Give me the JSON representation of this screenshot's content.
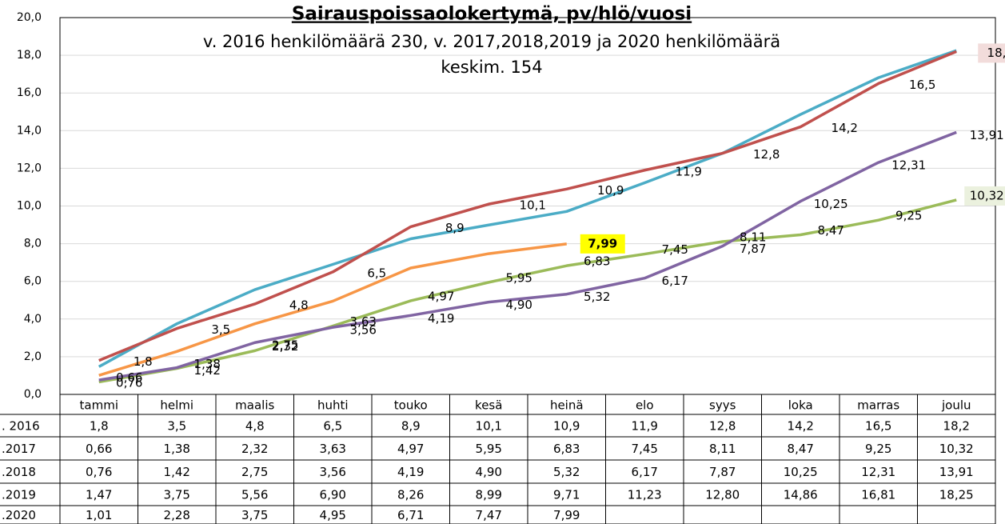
{
  "chart_data": {
    "type": "line",
    "title": "Sairauspoissaolokertymä,  pv/hlö/vuosi",
    "subtitle": [
      "v. 2016 henkilömäärä 230, v. 2017,2018,2019 ja 2020 henkilömäärä",
      "keskim. 154"
    ],
    "categories": [
      "tammi",
      "helmi",
      "maalis",
      "huhti",
      "touko",
      "kesä",
      "heinä",
      "elo",
      "syys",
      "loka",
      "marras",
      "joulu"
    ],
    "ylim": [
      0,
      20
    ],
    "yticks": [
      {
        "value": 0,
        "label": "0,0"
      },
      {
        "value": 2,
        "label": "2,0"
      },
      {
        "value": 4,
        "label": "4,0"
      },
      {
        "value": 6,
        "label": "6,0"
      },
      {
        "value": 8,
        "label": "8,0"
      },
      {
        "value": 10,
        "label": "10,0"
      },
      {
        "value": 12,
        "label": "12,0"
      },
      {
        "value": 14,
        "label": "14,0"
      },
      {
        "value": 16,
        "label": "16,0"
      },
      {
        "value": 18,
        "label": "18,0"
      },
      {
        "value": 20,
        "label": "20,0"
      }
    ],
    "grid": true,
    "series": [
      {
        "name": ". 2016",
        "color": "#c0504d",
        "values": [
          1.8,
          3.5,
          4.8,
          6.5,
          8.9,
          10.1,
          10.9,
          11.9,
          12.8,
          14.2,
          16.5,
          18.2
        ],
        "value_labels": [
          "1,8",
          "3,5",
          "4,8",
          "6,5",
          "8,9",
          "10,1",
          "10,9",
          "11,9",
          "12,8",
          "14,2",
          "16,5",
          "18,2"
        ]
      },
      {
        "name": ".2017",
        "color": "#9bbb59",
        "values": [
          0.66,
          1.38,
          2.32,
          3.63,
          4.97,
          5.95,
          6.83,
          7.45,
          8.11,
          8.47,
          9.25,
          10.32
        ],
        "value_labels": [
          "0,66",
          "1,38",
          "2,32",
          "3,63",
          "4,97",
          "5,95",
          "6,83",
          "7,45",
          "8,11",
          "8,47",
          "9,25",
          "10,32"
        ]
      },
      {
        "name": ".2018",
        "color": "#8064a2",
        "values": [
          0.76,
          1.42,
          2.75,
          3.56,
          4.19,
          4.9,
          5.32,
          6.17,
          7.87,
          10.25,
          12.31,
          13.91
        ],
        "value_labels": [
          "0,76",
          "1,42",
          "2,75",
          "3,56",
          "4,19",
          "4,90",
          "5,32",
          "6,17",
          "7,87",
          "10,25",
          "12,31",
          "13,91"
        ]
      },
      {
        "name": ".2019",
        "color": "#4bacc6",
        "values": [
          1.47,
          3.75,
          5.56,
          6.9,
          8.26,
          8.99,
          9.71,
          11.23,
          12.8,
          14.86,
          16.81,
          18.25
        ],
        "value_labels": [
          "1,47",
          "3,75",
          "5,56",
          "6,90",
          "8,26",
          "8,99",
          "9,71",
          "11,23",
          "12,80",
          "14,86",
          "16,81",
          "18,25"
        ]
      },
      {
        "name": ".2020",
        "color": "#f79646",
        "values": [
          1.01,
          2.28,
          3.75,
          4.95,
          6.71,
          7.47,
          7.99,
          null,
          null,
          null,
          null,
          null
        ],
        "value_labels": [
          "1,01",
          "2,28",
          "3,75",
          "4,95",
          "6,71",
          "7,47",
          "7,99",
          null,
          null,
          null,
          null,
          null
        ]
      }
    ]
  }
}
